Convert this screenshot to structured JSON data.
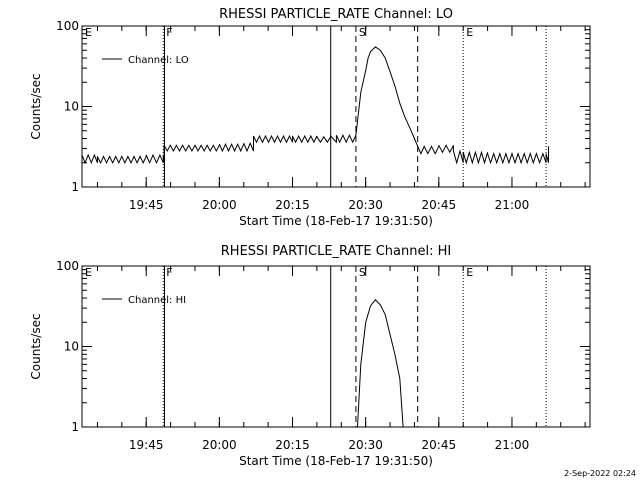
{
  "footer": {
    "stamp": "2-Sep-2022 02:24"
  },
  "chart_data": [
    {
      "type": "line",
      "title": "RHESSI PARTICLE_RATE Channel: LO",
      "xlabel": "Start Time (18-Feb-17 19:31:50)",
      "ylabel": "Counts/sec",
      "yscale": "log",
      "ylim": [
        1,
        100
      ],
      "xlim": [
        "19:31:50",
        "21:16:00"
      ],
      "xticks": [
        "19:45",
        "20:00",
        "20:15",
        "20:30",
        "20:45",
        "21:00"
      ],
      "yticks": [
        "1",
        "10",
        "100"
      ],
      "legend": {
        "position": "top-left",
        "entries": [
          "Channel: LO"
        ]
      },
      "markers": [
        {
          "label": "E",
          "time": "19:31:50",
          "style": "dotted"
        },
        {
          "label": "F",
          "time": "19:48:30",
          "style": "dotted"
        },
        {
          "label": "",
          "time": "19:48:45",
          "style": "solid"
        },
        {
          "label": "",
          "time": "20:22:50",
          "style": "solid"
        },
        {
          "label": "S",
          "time": "20:28:00",
          "style": "dashed"
        },
        {
          "label": "",
          "time": "20:40:40",
          "style": "dashed"
        },
        {
          "label": "E",
          "time": "20:50:00",
          "style": "dotted"
        },
        {
          "label": "",
          "time": "21:07:00",
          "style": "dotted"
        }
      ],
      "series": [
        {
          "name": "Channel: LO",
          "x": [
            "19:31:50",
            "19:35:00",
            "19:40:00",
            "19:45:00",
            "19:48:30",
            "19:48:40",
            "19:55:00",
            "20:00:00",
            "20:05:00",
            "20:07:00",
            "20:15:00",
            "20:20:00",
            "20:22:50",
            "20:24:00",
            "20:28:00",
            "20:29:00",
            "20:30:00",
            "20:30:30",
            "20:31:00",
            "20:32:00",
            "20:33:00",
            "20:34:00",
            "20:35:00",
            "20:36:00",
            "20:37:00",
            "20:38:00",
            "20:39:00",
            "20:40:00",
            "20:40:40",
            "20:42:00",
            "20:45:00",
            "20:48:00",
            "20:50:00",
            "20:55:00",
            "21:00:00",
            "21:05:00",
            "21:07:00",
            "21:07:30"
          ],
          "y": [
            2.5,
            2.4,
            2.4,
            2.5,
            2.5,
            3.3,
            3.3,
            3.4,
            3.5,
            4.3,
            4.3,
            4.2,
            4.3,
            4.4,
            4.4,
            15,
            28,
            40,
            48,
            55,
            50,
            40,
            27,
            18,
            11,
            7.5,
            5.5,
            4.0,
            3.2,
            3.2,
            3.3,
            2.8,
            2.7,
            2.6,
            2.6,
            2.6,
            2.6,
            3.2
          ],
          "jitter_low": [
            2.0,
            2.0,
            2.0,
            2.0,
            2.0,
            2.8,
            2.8,
            2.8,
            2.8,
            3.6,
            3.6,
            3.6,
            3.6,
            3.6,
            3.6,
            null,
            null,
            null,
            null,
            null,
            null,
            null,
            null,
            null,
            null,
            null,
            null,
            null,
            2.6,
            2.6,
            2.7,
            2.0,
            2.0,
            2.0,
            2.0,
            2.0,
            2.0,
            2.0
          ]
        }
      ]
    },
    {
      "type": "line",
      "title": "RHESSI PARTICLE_RATE Channel: HI",
      "xlabel": "Start Time (18-Feb-17 19:31:50)",
      "ylabel": "Counts/sec",
      "yscale": "log",
      "ylim": [
        1,
        100
      ],
      "xlim": [
        "19:31:50",
        "21:16:00"
      ],
      "xticks": [
        "19:45",
        "20:00",
        "20:15",
        "20:30",
        "20:45",
        "21:00"
      ],
      "yticks": [
        "1",
        "10",
        "100"
      ],
      "legend": {
        "position": "top-left",
        "entries": [
          "Channel: HI"
        ]
      },
      "markers": [
        {
          "label": "E",
          "time": "19:31:50",
          "style": "dotted"
        },
        {
          "label": "F",
          "time": "19:48:30",
          "style": "dotted"
        },
        {
          "label": "",
          "time": "19:48:45",
          "style": "solid"
        },
        {
          "label": "",
          "time": "20:22:50",
          "style": "solid"
        },
        {
          "label": "S",
          "time": "20:28:00",
          "style": "dashed"
        },
        {
          "label": "",
          "time": "20:40:40",
          "style": "dashed"
        },
        {
          "label": "E",
          "time": "20:50:00",
          "style": "dotted"
        },
        {
          "label": "",
          "time": "21:07:00",
          "style": "dotted"
        }
      ],
      "series": [
        {
          "name": "Channel: HI",
          "x": [
            "20:28:20",
            "20:29:00",
            "20:30:00",
            "20:31:00",
            "20:32:00",
            "20:33:00",
            "20:34:00",
            "20:35:00",
            "20:36:00",
            "20:37:00",
            "20:37:40"
          ],
          "y": [
            1.0,
            6,
            20,
            32,
            38,
            33,
            25,
            14,
            8,
            4,
            1.0
          ]
        }
      ]
    }
  ]
}
